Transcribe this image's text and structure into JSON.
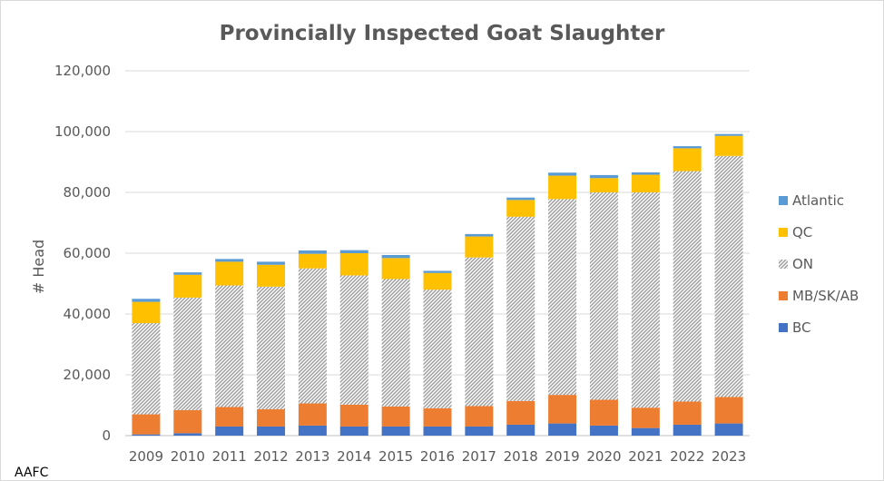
{
  "chart_data": {
    "type": "bar",
    "stacked": true,
    "title": "Provincially Inspected Goat Slaughter",
    "ylabel": "# Head",
    "xlabel": "",
    "ylim": [
      0,
      120000
    ],
    "yticks": [
      0,
      20000,
      40000,
      60000,
      80000,
      100000,
      120000
    ],
    "ytick_labels": [
      "0",
      "20,000",
      "40,000",
      "60,000",
      "80,000",
      "100,000",
      "120,000"
    ],
    "grid": true,
    "legend_position": "right",
    "source_note": "AAFC",
    "categories": [
      "2009",
      "2010",
      "2011",
      "2012",
      "2013",
      "2014",
      "2015",
      "2016",
      "2017",
      "2018",
      "2019",
      "2020",
      "2021",
      "2022",
      "2023"
    ],
    "series": [
      {
        "name": "BC",
        "color": "#4472C4",
        "pattern": "solid",
        "values": [
          400,
          800,
          3000,
          3000,
          3300,
          3000,
          3000,
          3000,
          3000,
          3600,
          4000,
          3300,
          2500,
          3600,
          4000
        ]
      },
      {
        "name": "MB/SK/AB",
        "color": "#ED7D31",
        "pattern": "solid",
        "values": [
          6600,
          7600,
          6400,
          5700,
          7300,
          7200,
          6600,
          6000,
          6700,
          7800,
          9400,
          8500,
          6700,
          7600,
          8700
        ]
      },
      {
        "name": "ON",
        "color": "#A6A6A6",
        "pattern": "diagonal-hatch",
        "values": [
          30000,
          37000,
          40000,
          40300,
          44400,
          42500,
          41900,
          39000,
          48900,
          60600,
          64400,
          68200,
          70800,
          75800,
          79300
        ]
      },
      {
        "name": "QC",
        "color": "#FFC000",
        "pattern": "solid",
        "values": [
          7000,
          7500,
          7800,
          7200,
          4800,
          7300,
          6900,
          5500,
          6900,
          5500,
          7700,
          4700,
          5800,
          7500,
          6600
        ]
      },
      {
        "name": "Atlantic",
        "color": "#5B9BD5",
        "pattern": "solid",
        "values": [
          1000,
          800,
          900,
          1000,
          1100,
          1000,
          1000,
          700,
          800,
          800,
          1000,
          1000,
          800,
          700,
          600
        ]
      }
    ]
  }
}
